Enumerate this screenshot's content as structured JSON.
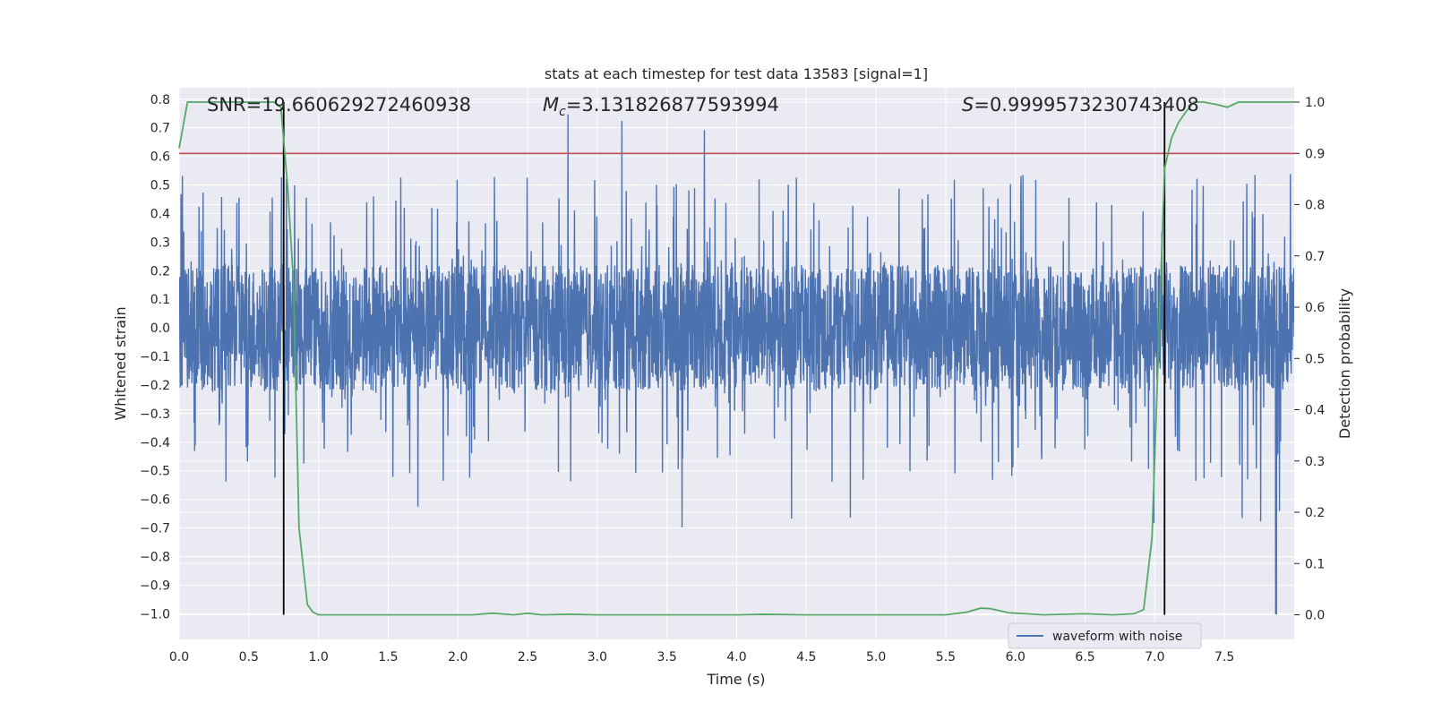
{
  "chart_data": {
    "type": "line",
    "title": "stats at each timestep for test data 13583 [signal=1]",
    "xlabel": "Time (s)",
    "ylabel": "Whitened strain",
    "y2label": "Detection probability",
    "xlim": [
      0.0,
      8.0
    ],
    "ylim": [
      -1.09,
      0.84
    ],
    "y2lim": [
      -0.048,
      1.028
    ],
    "x_ticks": [
      0.0,
      0.5,
      1.0,
      1.5,
      2.0,
      2.5,
      3.0,
      3.5,
      4.0,
      4.5,
      5.0,
      5.5,
      6.0,
      6.5,
      7.0,
      7.5
    ],
    "y_ticks": [
      -1.0,
      -0.9,
      -0.8,
      -0.7,
      -0.6,
      -0.5,
      -0.4,
      -0.3,
      -0.2,
      -0.1,
      0.0,
      0.1,
      0.2,
      0.3,
      0.4,
      0.5,
      0.6,
      0.7,
      0.8
    ],
    "y2_ticks": [
      0.0,
      0.1,
      0.2,
      0.3,
      0.4,
      0.5,
      0.6,
      0.7,
      0.8,
      0.9,
      1.0
    ],
    "grid": true,
    "legend_position": "lower-right",
    "annotations": {
      "snr": "SNR=19.660629272460938",
      "mc_symbol": "M",
      "mc_sub": "c",
      "mc_value": "=3.131826877593994",
      "s_symbol": "S",
      "s_value": "=0.9999573230743408"
    },
    "threshold": {
      "y2": 0.9,
      "color": "#c44e52"
    },
    "vlines": [
      0.75,
      7.07
    ],
    "series": [
      {
        "name": "waveform with noise",
        "axis": "left",
        "color": "#4c72b0",
        "kind": "noise",
        "samples": 4096,
        "core_amplitude": 0.22,
        "spike_max": 0.76,
        "spike_min": -1.0,
        "x_range": [
          0.0,
          8.0
        ]
      },
      {
        "axis": "right",
        "color": "#55a868",
        "x": [
          0.0,
          0.06,
          0.2,
          0.4,
          0.6,
          0.68,
          0.73,
          0.78,
          0.82,
          0.86,
          0.92,
          0.96,
          1.0,
          1.05,
          1.2,
          1.5,
          2.0,
          2.1,
          2.25,
          2.4,
          2.5,
          2.6,
          2.8,
          3.0,
          3.5,
          4.0,
          4.2,
          4.5,
          5.0,
          5.5,
          5.65,
          5.75,
          5.82,
          5.95,
          6.2,
          6.5,
          6.7,
          6.85,
          6.92,
          6.98,
          7.03,
          7.07,
          7.12,
          7.17,
          7.22,
          7.28,
          7.35,
          7.45,
          7.52,
          7.6,
          7.8,
          8.0
        ],
        "y": [
          0.91,
          1.0,
          1.0,
          1.0,
          1.0,
          1.0,
          0.99,
          0.83,
          0.65,
          0.17,
          0.02,
          0.005,
          0.0,
          0.0,
          0.0,
          0.0,
          0.0,
          0.0,
          0.003,
          0.0,
          0.003,
          0.0,
          0.001,
          0.0,
          0.0,
          0.0,
          0.001,
          0.0,
          0.0,
          0.0,
          0.005,
          0.013,
          0.012,
          0.004,
          0.0,
          0.002,
          0.0,
          0.002,
          0.01,
          0.15,
          0.55,
          0.87,
          0.93,
          0.96,
          0.98,
          1.0,
          1.0,
          0.995,
          0.99,
          1.0,
          1.0,
          1.0
        ]
      }
    ]
  }
}
